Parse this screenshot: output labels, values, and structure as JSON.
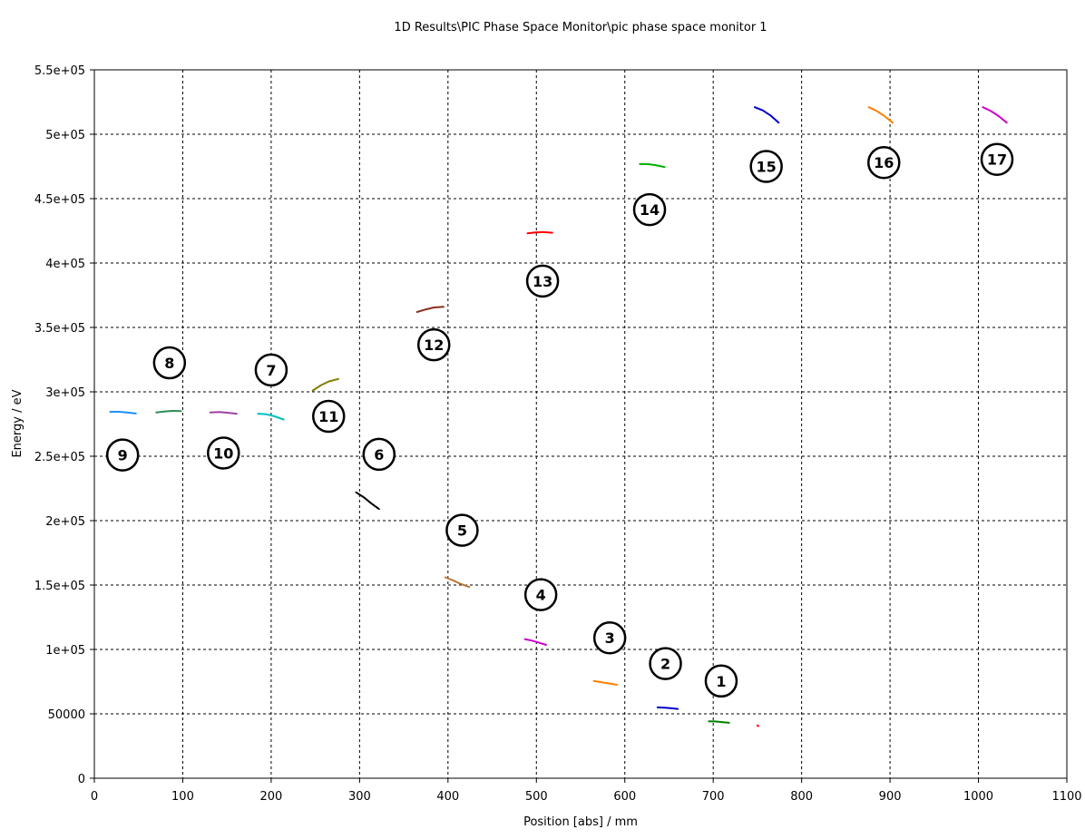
{
  "chart_data": {
    "type": "line",
    "title": "1D Results\\PIC Phase Space Monitor\\pic phase space monitor 1",
    "xlabel": "Position [abs]  / mm",
    "ylabel": "Energy / eV",
    "xlim": [
      0,
      1100
    ],
    "ylim": [
      0,
      550000
    ],
    "x_ticks": [
      0,
      100,
      200,
      300,
      400,
      500,
      600,
      700,
      800,
      900,
      1000,
      1100
    ],
    "x_tick_labels": [
      "0",
      "100",
      "200",
      "300",
      "400",
      "500",
      "600",
      "700",
      "800",
      "900",
      "1000",
      "1100"
    ],
    "y_ticks": [
      0,
      50000,
      100000,
      150000,
      200000,
      250000,
      300000,
      350000,
      400000,
      450000,
      500000,
      550000
    ],
    "y_tick_labels": [
      "0",
      "50000",
      "1e+05",
      "1.5e+05",
      "2e+05",
      "2.5e+05",
      "3e+05",
      "3.5e+05",
      "4e+05",
      "4.5e+05",
      "5e+05",
      "5.5e+05"
    ],
    "grid": true,
    "series": [
      {
        "color": "#ff0000",
        "x": [
          750,
          751
        ],
        "y": [
          41000,
          40500
        ]
      },
      {
        "color": "#008000",
        "x": [
          695,
          702,
          710,
          718
        ],
        "y": [
          44200,
          44100,
          43600,
          43000
        ]
      },
      {
        "color": "#0000cc",
        "x": [
          637,
          645,
          653,
          660
        ],
        "y": [
          55000,
          54700,
          54300,
          53800
        ]
      },
      {
        "color": "#ff8000",
        "x": [
          565,
          574,
          583,
          591
        ],
        "y": [
          75500,
          74500,
          73500,
          72500
        ]
      },
      {
        "color": "#cc00cc",
        "x": [
          487,
          495,
          503,
          511
        ],
        "y": [
          108000,
          106800,
          105200,
          103500
        ]
      },
      {
        "color": "#b87333",
        "x": [
          397,
          406,
          414,
          424
        ],
        "y": [
          156000,
          153500,
          151000,
          148500
        ]
      },
      {
        "color": "#000000",
        "x": [
          296,
          305,
          313,
          322
        ],
        "y": [
          222000,
          218000,
          213500,
          209000
        ]
      },
      {
        "color": "#808000",
        "x": [
          247,
          256,
          265,
          276
        ],
        "y": [
          301000,
          305000,
          308000,
          310000
        ]
      },
      {
        "color": "#00bfbf",
        "x": [
          185,
          195,
          204,
          214
        ],
        "y": [
          283000,
          282500,
          281000,
          278500
        ]
      },
      {
        "color": "#a040a0",
        "x": [
          131,
          141,
          150,
          161
        ],
        "y": [
          284000,
          284300,
          283800,
          283000
        ]
      },
      {
        "color": "#2e8b57",
        "x": [
          70,
          80,
          88,
          98
        ],
        "y": [
          284000,
          284800,
          285200,
          285000
        ]
      },
      {
        "color": "#1e90ff",
        "x": [
          18,
          28,
          37,
          47
        ],
        "y": [
          284500,
          284500,
          284000,
          283200
        ]
      },
      {
        "color": "#8b2e1e",
        "x": [
          365,
          375,
          384,
          395
        ],
        "y": [
          362000,
          364000,
          365500,
          366000
        ]
      },
      {
        "color": "#ff0000",
        "x": [
          490,
          499,
          508,
          518
        ],
        "y": [
          423000,
          423800,
          424000,
          423500
        ]
      },
      {
        "color": "#00b000",
        "x": [
          617,
          626,
          635,
          645
        ],
        "y": [
          476800,
          476800,
          476000,
          474500
        ]
      },
      {
        "color": "#0000cc",
        "x": [
          747,
          756,
          765,
          774
        ],
        "y": [
          521000,
          518500,
          514500,
          509000
        ]
      },
      {
        "color": "#ff8000",
        "x": [
          876,
          885,
          894,
          903
        ],
        "y": [
          521000,
          518000,
          514000,
          509000
        ]
      },
      {
        "color": "#cc00cc",
        "x": [
          1005,
          1014,
          1023,
          1032
        ],
        "y": [
          521000,
          518000,
          514000,
          509000
        ]
      }
    ],
    "annotations": [
      {
        "label": "1",
        "x": 709,
        "y": 75500
      },
      {
        "label": "2",
        "x": 646,
        "y": 89000
      },
      {
        "label": "3",
        "x": 583,
        "y": 109000
      },
      {
        "label": "4",
        "x": 505,
        "y": 142500
      },
      {
        "label": "5",
        "x": 416,
        "y": 192500
      },
      {
        "label": "6",
        "x": 322,
        "y": 251500
      },
      {
        "label": "7",
        "x": 200,
        "y": 317000
      },
      {
        "label": "8",
        "x": 85,
        "y": 322500
      },
      {
        "label": "9",
        "x": 32,
        "y": 251000
      },
      {
        "label": "10",
        "x": 146,
        "y": 252500
      },
      {
        "label": "11",
        "x": 265,
        "y": 281000
      },
      {
        "label": "12",
        "x": 384,
        "y": 336500
      },
      {
        "label": "13",
        "x": 507,
        "y": 386000
      },
      {
        "label": "14",
        "x": 628,
        "y": 441500
      },
      {
        "label": "15",
        "x": 760,
        "y": 475000
      },
      {
        "label": "16",
        "x": 893,
        "y": 478000
      },
      {
        "label": "17",
        "x": 1021,
        "y": 480500
      }
    ]
  }
}
